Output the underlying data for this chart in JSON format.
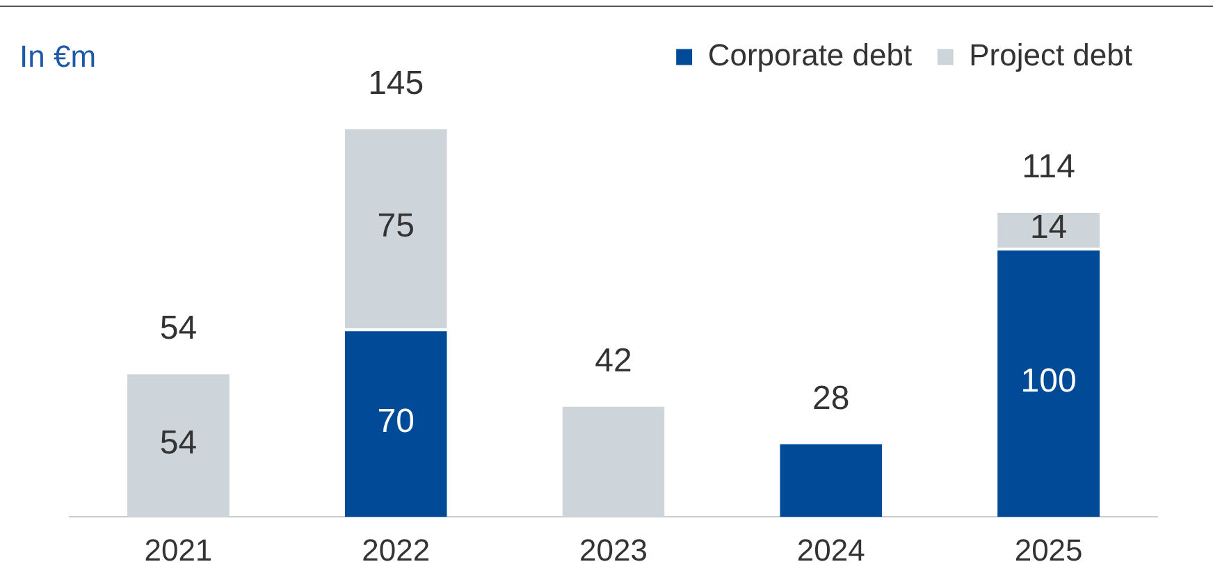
{
  "chart_data": {
    "type": "bar",
    "stacked": true,
    "ylabel": "In €m",
    "categories": [
      "2021",
      "2022",
      "2023",
      "2024",
      "2025"
    ],
    "series": [
      {
        "name": "Corporate debt",
        "color": "#004a98",
        "values": [
          null,
          70,
          null,
          28,
          100
        ],
        "value_labels": [
          null,
          "70",
          null,
          null,
          "100"
        ]
      },
      {
        "name": "Project debt",
        "color": "#cdd5da",
        "values": [
          54,
          75,
          42,
          null,
          14
        ],
        "value_labels": [
          "54",
          "75",
          null,
          null,
          "14"
        ]
      }
    ],
    "totals": [
      "54",
      "145",
      "42",
      "28",
      "114"
    ],
    "legend": "top right",
    "grid": false
  }
}
